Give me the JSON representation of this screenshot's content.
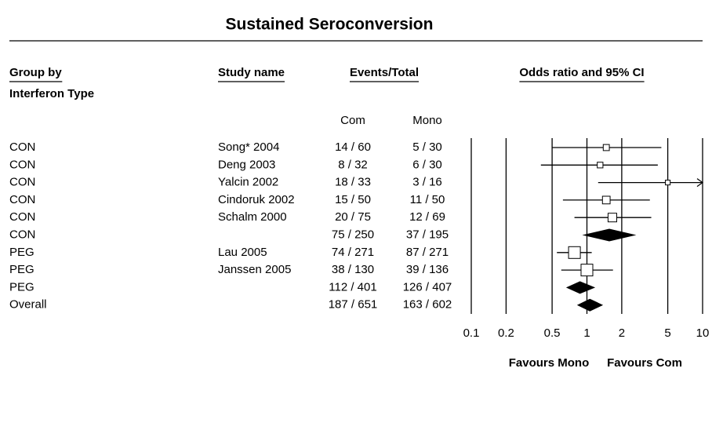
{
  "chart_data": {
    "type": "forest",
    "title": "Sustained Seroconversion",
    "headers": {
      "group": "Group by",
      "group_sub": "Interferon Type",
      "study": "Study name",
      "events": "Events/Total",
      "com": "Com",
      "mono": "Mono",
      "effect": "Odds ratio and 95% CI"
    },
    "rows": [
      {
        "group": "CON",
        "study": "Song* 2004",
        "com": "14 / 60",
        "mono": "5 / 30",
        "or": 1.47,
        "lower": 0.5,
        "upper": 4.4
      },
      {
        "group": "CON",
        "study": "Deng 2003",
        "com": "8 / 32",
        "mono": "6 / 30",
        "or": 1.3,
        "lower": 0.4,
        "upper": 4.1
      },
      {
        "group": "CON",
        "study": "Yalcin 2002",
        "com": "18 / 33",
        "mono": "3 / 16",
        "or": 5,
        "lower": 1.25,
        "upper": 20
      },
      {
        "group": "CON",
        "study": "Cindoruk 2002",
        "com": "15 / 50",
        "mono": "11 / 50",
        "or": 1.47,
        "lower": 0.62,
        "upper": 3.5
      },
      {
        "group": "CON",
        "study": "Schalm 2000",
        "com": "20 / 75",
        "mono": "12 / 69",
        "or": 1.66,
        "lower": 0.78,
        "upper": 3.6
      },
      {
        "group": "CON",
        "study": null,
        "com": "75 / 250",
        "mono": "37 / 195",
        "or": 1.56,
        "lower": 0.91,
        "upper": 2.67
      },
      {
        "group": "PEG",
        "study": "Lau 2005",
        "com": "74 / 271",
        "mono": "87 / 271",
        "or": 0.78,
        "lower": 0.55,
        "upper": 1.1
      },
      {
        "group": "PEG",
        "study": "Janssen 2005",
        "com": "38 / 130",
        "mono": "39 / 136",
        "or": 1.0,
        "lower": 0.6,
        "upper": 1.68
      },
      {
        "group": "PEG",
        "study": null,
        "com": "112 / 401",
        "mono": "126 / 407",
        "or": 0.87,
        "lower": 0.66,
        "upper": 1.18
      },
      {
        "group": "Overall",
        "study": null,
        "com": "187 / 651",
        "mono": "163 / 602",
        "or": 1.06,
        "lower": 0.82,
        "upper": 1.38
      }
    ],
    "xlim": [
      0.1,
      10
    ],
    "xscale": "log",
    "xticks": [
      0.1,
      0.2,
      0.5,
      1,
      2,
      5,
      10
    ],
    "favours_left": "Favours Mono",
    "favours_right": "Favours Com",
    "grid": true,
    "color": "#000000"
  }
}
